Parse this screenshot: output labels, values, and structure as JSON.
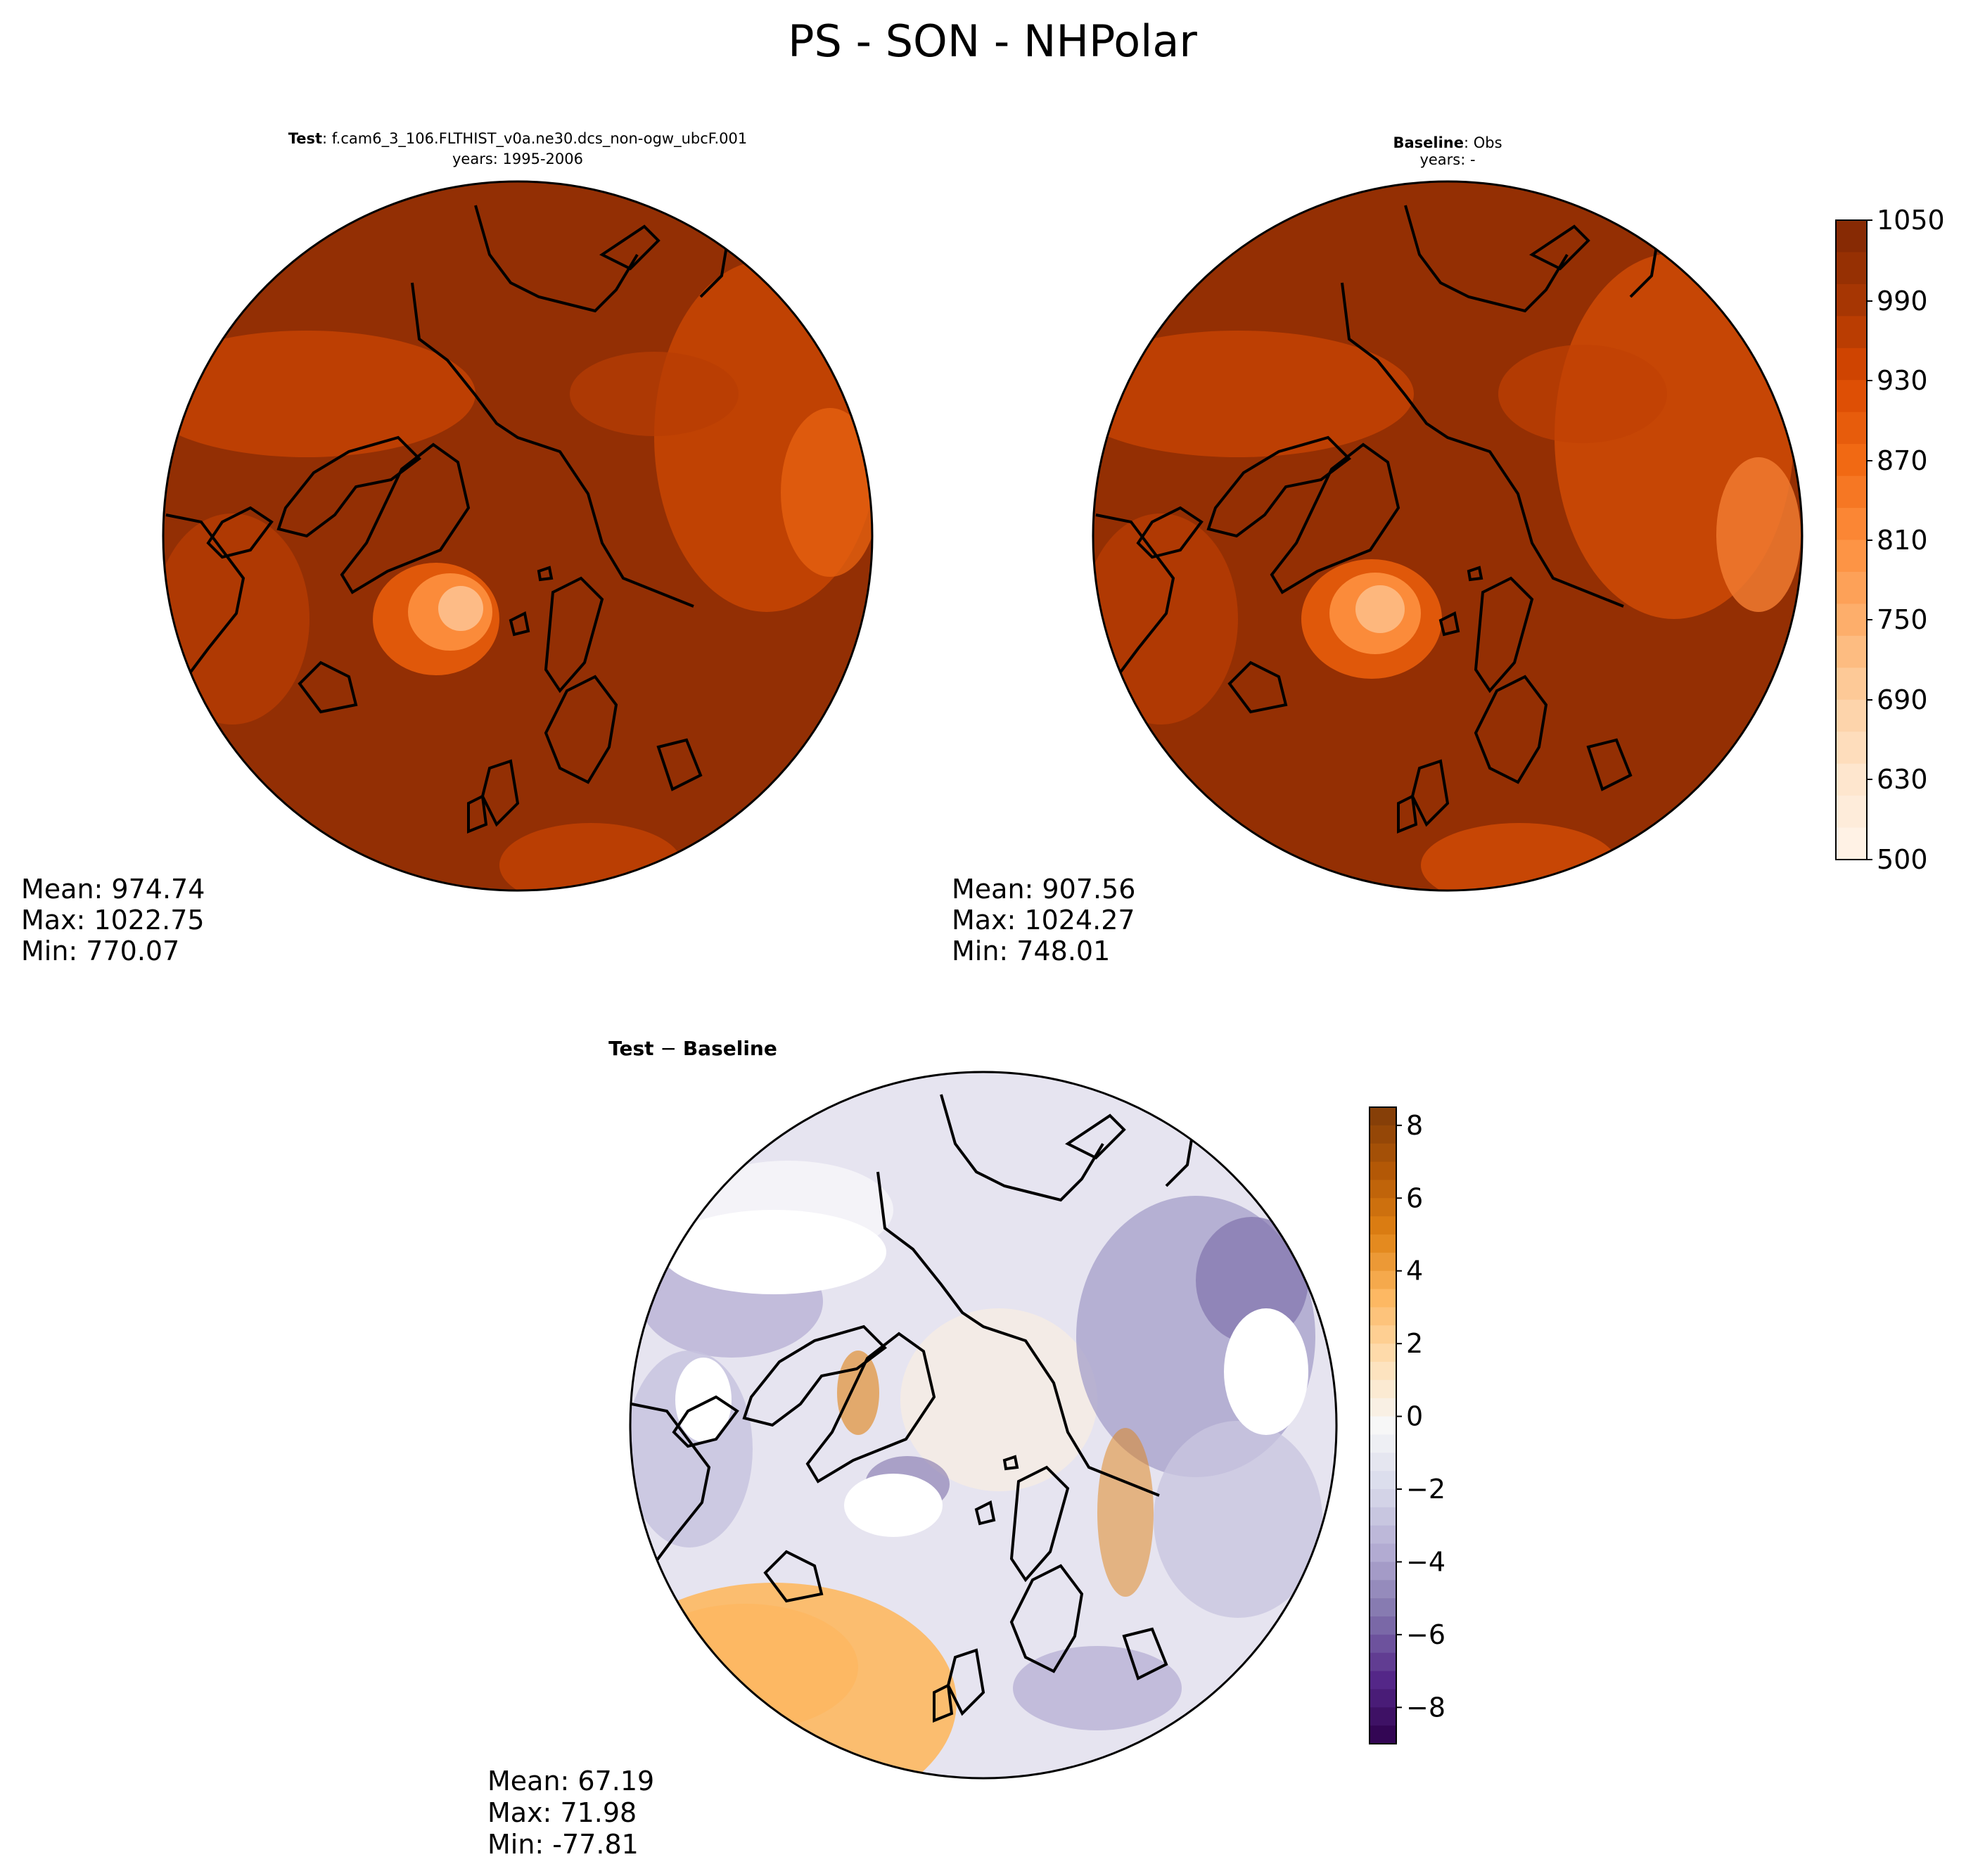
{
  "title": "PS - SON - NHPolar",
  "colors": {
    "top_cmap": [
      "#fff5eb",
      "#fee6ce",
      "#fdd0a2",
      "#fdae6b",
      "#fd8d3c",
      "#f16913",
      "#d94801",
      "#a63603",
      "#7f2704"
    ],
    "diff_cmap": [
      "#2d004b",
      "#542788",
      "#8073ac",
      "#b2abd2",
      "#d8daeb",
      "#f7f7f7",
      "#fee0b6",
      "#fdb863",
      "#e08214",
      "#b35806",
      "#7f3b08"
    ],
    "land": "#000000",
    "fill_test": "#932f04",
    "fill_base": "#942f03"
  },
  "chart_data": [
    {
      "id": "test",
      "type": "polar_map",
      "title_bold": "Test",
      "title_rest": ": f.cam6_3_106.FLTHIST_v0a.ne30.dcs_non-ogw_ubcF.001",
      "subtitle": "years: 1995-2006",
      "stats": {
        "mean": "Mean: 974.74",
        "max": "Max: 1022.75",
        "min": "Min: 770.07"
      }
    },
    {
      "id": "baseline",
      "type": "polar_map",
      "title_bold": "Baseline",
      "title_rest": ": Obs",
      "subtitle": "years: -",
      "stats": {
        "mean": "Mean: 907.56",
        "max": "Max: 1024.27",
        "min": "Min: 748.01"
      },
      "colorbar": {
        "min": 500,
        "max": 1050,
        "ticks": [
          "1050",
          "990",
          "930",
          "870",
          "810",
          "750",
          "690",
          "630",
          "500"
        ]
      }
    },
    {
      "id": "difference",
      "type": "polar_map",
      "title_bold": "Test",
      "title_op": " − ",
      "title_bold2": "Baseline",
      "stats": {
        "mean": "Mean: 67.19",
        "max": "Max: 71.98",
        "min": "Min: -77.81"
      },
      "colorbar": {
        "min": -9,
        "max": 8.5,
        "ticks": [
          "8",
          "6",
          "4",
          "2",
          "0",
          "−2",
          "−4",
          "−6",
          "−8"
        ]
      }
    }
  ]
}
